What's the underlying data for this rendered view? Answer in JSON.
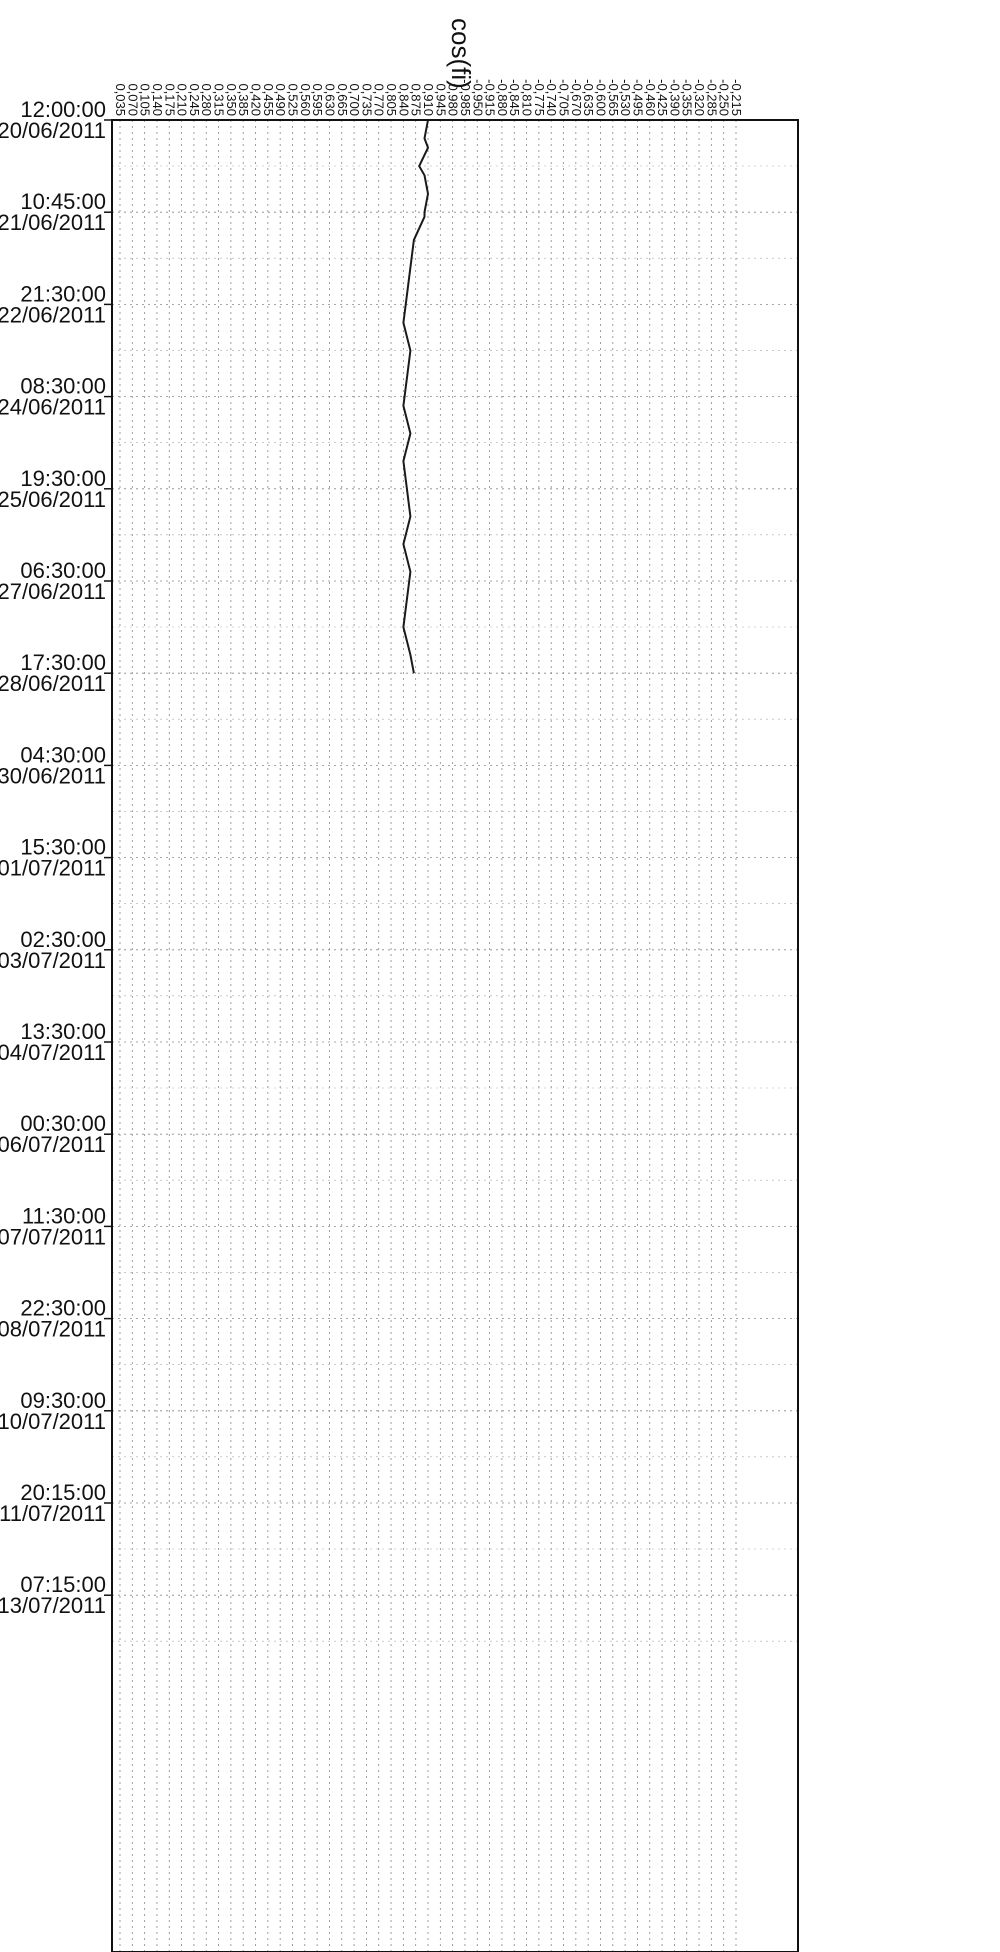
{
  "chart_data": {
    "type": "line",
    "title": "cos(fi)",
    "x_tick_labels": [
      "0,035",
      "0,070",
      "0,105",
      "0,140",
      "0,175",
      "0,210",
      "0,245",
      "0,280",
      "0,315",
      "0,350",
      "0,385",
      "0,420",
      "0,455",
      "0,490",
      "0,525",
      "0,560",
      "0,595",
      "0,630",
      "0,665",
      "0,700",
      "0,735",
      "0,770",
      "0,805",
      "0,840",
      "0,875",
      "0,910",
      "0,945",
      "0,980",
      "-0,985",
      "-0,950",
      "-0,915",
      "-0,880",
      "-0,845",
      "-0,810",
      "-0,775",
      "-0,740",
      "-0,705",
      "-0,670",
      "-0,635",
      "-0,600",
      "-0,565",
      "-0,530",
      "-0,495",
      "-0,460",
      "-0,425",
      "-0,390",
      "-0,355",
      "-0,320",
      "-0,285",
      "-0,250",
      "-0,215"
    ],
    "y_tick_labels": [
      {
        "time": "12:00:00",
        "date": "20/06/2011"
      },
      {
        "time": "10:45:00",
        "date": "21/06/2011"
      },
      {
        "time": "21:30:00",
        "date": "22/06/2011"
      },
      {
        "time": "08:30:00",
        "date": "24/06/2011"
      },
      {
        "time": "19:30:00",
        "date": "25/06/2011"
      },
      {
        "time": "06:30:00",
        "date": "27/06/2011"
      },
      {
        "time": "17:30:00",
        "date": "28/06/2011"
      },
      {
        "time": "04:30:00",
        "date": "30/06/2011"
      },
      {
        "time": "15:30:00",
        "date": "01/07/2011"
      },
      {
        "time": "02:30:00",
        "date": "03/07/2011"
      },
      {
        "time": "13:30:00",
        "date": "04/07/2011"
      },
      {
        "time": "00:30:00",
        "date": "06/07/2011"
      },
      {
        "time": "11:30:00",
        "date": "07/07/2011"
      },
      {
        "time": "22:30:00",
        "date": "08/07/2011"
      },
      {
        "time": "09:30:00",
        "date": "10/07/2011"
      },
      {
        "time": "20:15:00",
        "date": "11/07/2011"
      },
      {
        "time": "07:15:00",
        "date": "13/07/2011"
      }
    ],
    "grid": true,
    "series": [
      {
        "color": "#1a1a1a",
        "points": [
          [
            0,
            0.91
          ],
          [
            0.2,
            0.9
          ],
          [
            0.3,
            0.91
          ],
          [
            0.5,
            0.885
          ],
          [
            0.6,
            0.9
          ],
          [
            0.8,
            0.91
          ],
          [
            1.0,
            0.9
          ],
          [
            1.05,
            0.9
          ],
          [
            1.3,
            0.87
          ],
          [
            1.6,
            0.86
          ],
          [
            1.9,
            0.85
          ],
          [
            2.2,
            0.84
          ],
          [
            2.5,
            0.86
          ],
          [
            2.8,
            0.85
          ],
          [
            3.1,
            0.84
          ],
          [
            3.4,
            0.86
          ],
          [
            3.7,
            0.84
          ],
          [
            4.0,
            0.85
          ],
          [
            4.3,
            0.86
          ],
          [
            4.6,
            0.84
          ],
          [
            4.9,
            0.86
          ],
          [
            5.2,
            0.85
          ],
          [
            5.5,
            0.84
          ],
          [
            5.8,
            0.86
          ],
          [
            6.0,
            0.87
          ]
        ]
      }
    ]
  }
}
